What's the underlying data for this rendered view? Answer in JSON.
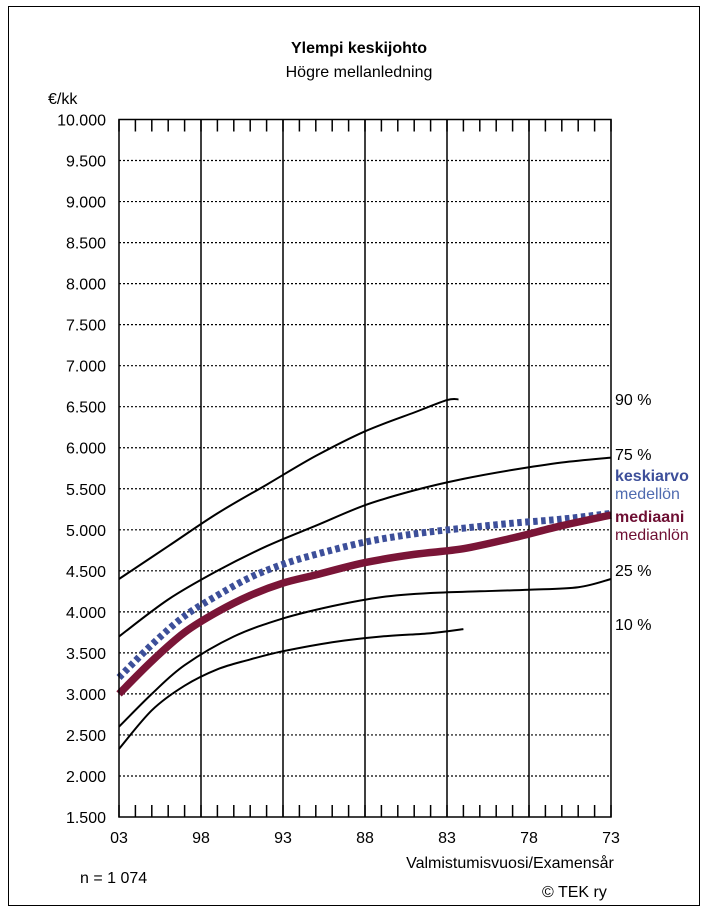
{
  "chart_data": {
    "type": "line",
    "title": "Ylempi keskijohto",
    "subtitle": "Högre mellanledning",
    "ylabel": "€/kk",
    "xlabel": "Valmistumisvuosi/Examensår",
    "ylim": [
      1500,
      10000
    ],
    "yticks": [
      1500,
      2000,
      2500,
      3000,
      3500,
      4000,
      4500,
      5000,
      5500,
      6000,
      6500,
      7000,
      7500,
      8000,
      8500,
      9000,
      9500,
      10000
    ],
    "ytick_labels": [
      "1.500",
      "2.000",
      "2.500",
      "3.000",
      "3.500",
      "4.000",
      "4.500",
      "5.000",
      "5.500",
      "6.000",
      "6.500",
      "7.000",
      "7.500",
      "8.000",
      "8.500",
      "9.000",
      "9.500",
      "10.000"
    ],
    "x_reversed": true,
    "xlim": [
      2003,
      1973
    ],
    "xticks": [
      2003,
      1998,
      1993,
      1988,
      1983,
      1978,
      1973
    ],
    "xtick_labels": [
      "03",
      "98",
      "93",
      "88",
      "83",
      "78",
      "73"
    ],
    "grid": "dotted horizontal, solid vertical",
    "series": [
      {
        "name": "90 %",
        "label_row": "90 %",
        "style": "thin",
        "color": "#000000",
        "x": [
          2003,
          2000,
          1997,
          1994,
          1991,
          1988,
          1985,
          1983,
          1982.3
        ],
        "y": [
          4400,
          4800,
          5200,
          5550,
          5900,
          6200,
          6430,
          6580,
          6590
        ]
      },
      {
        "name": "75 %",
        "label_row": "75 %",
        "style": "thin",
        "color": "#000000",
        "x": [
          2003,
          2000,
          1997,
          1994,
          1991,
          1988,
          1985,
          1982,
          1979,
          1976,
          1973
        ],
        "y": [
          3700,
          4150,
          4500,
          4800,
          5050,
          5300,
          5480,
          5620,
          5730,
          5820,
          5880
        ]
      },
      {
        "name": "keskiarvo",
        "name_sv": "medellön",
        "style": "dotted",
        "color": "#3d4f9a",
        "x": [
          2003,
          2001,
          1999,
          1997,
          1995,
          1993,
          1991,
          1988,
          1985,
          1982,
          1979,
          1976,
          1973
        ],
        "y": [
          3200,
          3600,
          3950,
          4200,
          4420,
          4580,
          4700,
          4850,
          4950,
          5020,
          5080,
          5130,
          5200
        ]
      },
      {
        "name": "mediaani",
        "name_sv": "medianlön",
        "style": "thick",
        "color": "#7a1537",
        "x": [
          2003,
          2001,
          1999,
          1997,
          1995,
          1993,
          1991,
          1988,
          1985,
          1982,
          1979,
          1976,
          1973
        ],
        "y": [
          3000,
          3400,
          3750,
          4000,
          4200,
          4350,
          4450,
          4600,
          4700,
          4770,
          4900,
          5050,
          5180
        ]
      },
      {
        "name": "25 %",
        "label_row": "25 %",
        "style": "thin",
        "color": "#000000",
        "x": [
          2003,
          2001,
          1999,
          1996,
          1993,
          1990,
          1987,
          1984,
          1981,
          1978,
          1975,
          1973
        ],
        "y": [
          2600,
          3000,
          3350,
          3700,
          3920,
          4070,
          4180,
          4230,
          4250,
          4270,
          4300,
          4400
        ]
      },
      {
        "name": "10 %",
        "label_row": "10 %",
        "style": "thin",
        "color": "#000000",
        "x": [
          2003,
          2001,
          1999,
          1997,
          1995,
          1993,
          1990,
          1987,
          1984,
          1982.0
        ],
        "y": [
          2330,
          2800,
          3100,
          3300,
          3420,
          3520,
          3630,
          3700,
          3740,
          3790
        ]
      }
    ],
    "note_n": "n = 1 074",
    "copyright": "© TEK ry",
    "colors": {
      "mean": "#3d4f9a",
      "mean_light": "#4f6bb0",
      "median": "#7a1537",
      "median_dark": "#6e0f33"
    }
  }
}
